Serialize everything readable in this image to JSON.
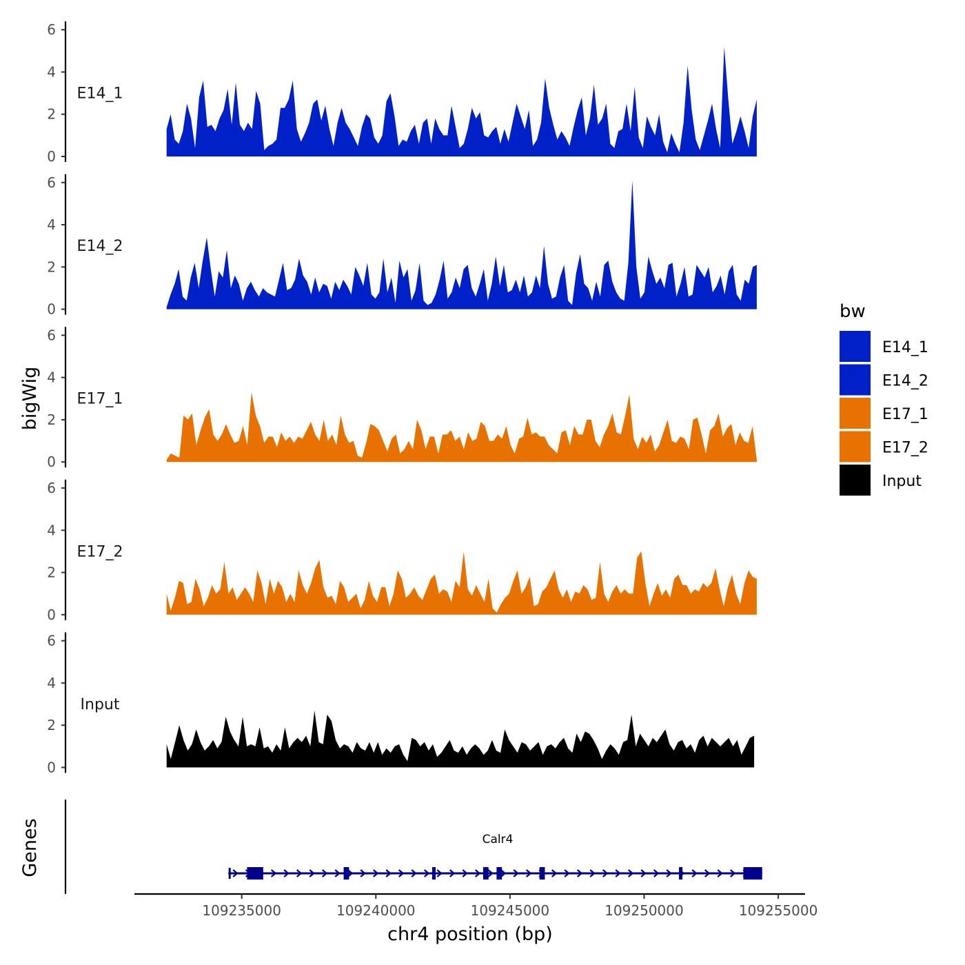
{
  "chart_data": {
    "type": "area",
    "title": "",
    "xlabel": "chr4 position (bp)",
    "ylabel": "bigWig",
    "genes_label": "Genes",
    "xlim": [
      109231000,
      109256000
    ],
    "ylim": [
      0,
      6.3
    ],
    "x_ticks": [
      109235000,
      109240000,
      109245000,
      109250000,
      109255000
    ],
    "x_tick_labels": [
      "109235000",
      "109240000",
      "109245000",
      "109250000",
      "109255000"
    ],
    "y_ticks": [
      0,
      2,
      4,
      6
    ],
    "y_tick_labels": [
      "0",
      "2",
      "4",
      "6"
    ],
    "legend": {
      "title": "bw",
      "position": "right",
      "entries": [
        {
          "label": "E14_1",
          "color": "#0020C8"
        },
        {
          "label": "E14_2",
          "color": "#0020C8"
        },
        {
          "label": "E17_1",
          "color": "#E87200"
        },
        {
          "label": "E17_2",
          "color": "#E87200"
        },
        {
          "label": "Input",
          "color": "#000000"
        }
      ]
    },
    "series": [
      {
        "name": "E14_1",
        "color": "#0020C8",
        "x_start": 109232200,
        "x_end": 109254200,
        "values": [
          1.3,
          2.0,
          0.8,
          0.6,
          1.2,
          2.5,
          1.8,
          0.4,
          2.8,
          3.6,
          1.4,
          1.5,
          1.2,
          1.8,
          2.2,
          3.2,
          1.5,
          3.5,
          1.5,
          1.2,
          1.6,
          1.3,
          3.1,
          2.5,
          0.3,
          0.5,
          0.6,
          0.8,
          2.3,
          2.3,
          2.7,
          3.6,
          1.3,
          0.7,
          1.1,
          1.6,
          2.5,
          2.7,
          1.7,
          2.4,
          1.3,
          0.5,
          1.6,
          2.3,
          1.6,
          1.3,
          0.9,
          0.5,
          1.4,
          2.0,
          1.8,
          0.9,
          0.6,
          1.0,
          2.6,
          3.0,
          1.9,
          0.5,
          0.8,
          0.7,
          1.2,
          1.5,
          0.6,
          1.6,
          1.8,
          0.6,
          1.8,
          1.3,
          1.0,
          1.0,
          2.4,
          1.4,
          0.4,
          0.6,
          1.3,
          2.3,
          1.8,
          2.1,
          1.0,
          0.9,
          1.2,
          1.4,
          0.6,
          1.3,
          0.7,
          1.6,
          2.5,
          1.9,
          1.3,
          2.2,
          0.5,
          0.8,
          1.6,
          3.7,
          2.3,
          1.5,
          0.8,
          1.2,
          0.9,
          0.5,
          1.4,
          2.2,
          2.8,
          1.0,
          1.8,
          3.4,
          1.5,
          1.8,
          2.5,
          0.6,
          0.4,
          1.2,
          1.3,
          2.5,
          1.2,
          3.3,
          0.9,
          0.4,
          1.9,
          1.4,
          1.0,
          2.0,
          0.7,
          0.2,
          1.1,
          0.6,
          0.2,
          1.6,
          4.3,
          2.2,
          0.8,
          0.3,
          1.0,
          1.7,
          2.5,
          1.3,
          0.4,
          5.2,
          2.7,
          0.6,
          1.2,
          1.9,
          1.2,
          0.4,
          1.9,
          2.7
        ]
      },
      {
        "name": "E14_2",
        "color": "#0020C8",
        "x_start": 109232200,
        "x_end": 109254200,
        "values": [
          0.1,
          0.7,
          1.2,
          1.9,
          0.6,
          0.4,
          1.5,
          2.2,
          1.0,
          2.3,
          3.4,
          1.9,
          0.6,
          1.8,
          1.5,
          2.8,
          1.0,
          1.6,
          1.2,
          0.4,
          1.0,
          1.3,
          0.9,
          0.6,
          1.0,
          0.8,
          0.7,
          0.6,
          1.4,
          2.2,
          0.9,
          1.0,
          1.4,
          2.4,
          1.6,
          1.3,
          0.7,
          1.5,
          0.8,
          1.2,
          1.1,
          0.5,
          1.3,
          0.9,
          1.4,
          1.1,
          0.7,
          2.0,
          1.6,
          1.1,
          2.2,
          0.7,
          0.5,
          0.8,
          2.4,
          0.8,
          1.5,
          0.3,
          2.3,
          1.5,
          1.9,
          0.4,
          0.9,
          2.2,
          0.4,
          0.2,
          0.3,
          0.7,
          1.4,
          2.3,
          0.5,
          0.8,
          1.5,
          1.0,
          1.9,
          2.1,
          1.0,
          0.6,
          1.2,
          1.9,
          0.4,
          1.2,
          2.5,
          1.1,
          2.1,
          0.8,
          0.9,
          1.4,
          0.8,
          1.6,
          0.6,
          0.8,
          1.6,
          1.0,
          3.0,
          1.2,
          0.5,
          0.6,
          1.5,
          2.1,
          0.4,
          0.2,
          1.7,
          2.6,
          1.2,
          1.0,
          0.4,
          1.3,
          0.6,
          2.1,
          2.3,
          1.3,
          0.8,
          0.5,
          0.4,
          2.2,
          6.1,
          2.0,
          0.5,
          0.8,
          2.5,
          1.8,
          1.2,
          1.5,
          1.0,
          2.1,
          2.2,
          0.6,
          1.2,
          2.0,
          0.6,
          0.7,
          2.1,
          1.8,
          1.5,
          2.0,
          0.8,
          1.1,
          1.6,
          0.7,
          1.8,
          2.1,
          0.7,
          0.4,
          1.4,
          1.2,
          2.0,
          2.1
        ]
      },
      {
        "name": "E17_1",
        "color": "#E87200",
        "x_start": 109232200,
        "x_end": 109254200,
        "values": [
          0.1,
          0.4,
          0.3,
          0.2,
          2.2,
          2.0,
          2.3,
          0.8,
          1.5,
          2.1,
          2.5,
          1.3,
          1.0,
          1.3,
          1.8,
          1.3,
          0.9,
          1.0,
          1.7,
          0.8,
          3.3,
          2.2,
          1.7,
          0.9,
          1.2,
          1.2,
          0.7,
          1.4,
          1.0,
          1.2,
          0.9,
          1.2,
          1.1,
          1.5,
          1.9,
          1.3,
          1.0,
          2.0,
          1.0,
          1.3,
          0.8,
          2.2,
          1.3,
          0.9,
          1.0,
          0.3,
          0.2,
          0.9,
          1.8,
          1.7,
          1.5,
          1.0,
          0.5,
          1.1,
          1.3,
          0.4,
          0.6,
          1.0,
          0.6,
          2.0,
          1.5,
          0.6,
          1.2,
          1.2,
          0.4,
          1.3,
          1.3,
          1.5,
          1.0,
          1.2,
          0.6,
          1.4,
          1.0,
          1.1,
          1.9,
          1.7,
          1.0,
          1.0,
          1.3,
          1.1,
          1.7,
          0.8,
          0.4,
          1.1,
          1.2,
          2.1,
          1.3,
          1.4,
          1.2,
          1.2,
          0.8,
          0.6,
          0.4,
          1.4,
          1.5,
          0.8,
          1.7,
          1.3,
          1.3,
          2.0,
          2.0,
          1.0,
          0.7,
          1.3,
          1.7,
          2.3,
          1.4,
          1.3,
          2.2,
          3.2,
          1.1,
          0.6,
          1.2,
          0.9,
          1.3,
          0.5,
          0.8,
          1.4,
          2.0,
          1.0,
          0.9,
          1.2,
          1.1,
          0.6,
          2.0,
          2.1,
          1.3,
          0.4,
          1.5,
          1.7,
          2.3,
          1.2,
          1.6,
          1.8,
          0.8,
          1.4,
          1.0,
          0.9,
          1.7,
          0.1
        ]
      },
      {
        "name": "E17_2",
        "color": "#E87200",
        "x_start": 109232200,
        "x_end": 109254200,
        "values": [
          1.0,
          0.2,
          0.8,
          1.6,
          1.5,
          0.5,
          0.6,
          1.7,
          1.2,
          0.4,
          0.8,
          1.4,
          1.0,
          1.2,
          2.5,
          1.0,
          1.3,
          0.7,
          1.0,
          1.3,
          1.0,
          0.6,
          2.1,
          1.5,
          0.5,
          1.7,
          1.0,
          1.6,
          1.3,
          0.6,
          1.0,
          0.6,
          2.1,
          1.4,
          1.0,
          1.5,
          2.2,
          2.6,
          1.3,
          0.8,
          0.9,
          0.5,
          1.6,
          1.3,
          0.6,
          0.8,
          1.0,
          0.3,
          0.7,
          1.6,
          0.9,
          0.6,
          1.3,
          1.3,
          0.4,
          1.0,
          2.1,
          1.7,
          0.8,
          1.0,
          1.3,
          0.9,
          0.7,
          1.2,
          1.7,
          1.9,
          1.0,
          1.2,
          1.1,
          0.6,
          1.6,
          1.3,
          3.0,
          1.2,
          0.9,
          1.4,
          1.0,
          0.6,
          1.7,
          0.3,
          0.1,
          0.5,
          0.8,
          1.0,
          1.6,
          2.1,
          1.0,
          1.3,
          1.8,
          0.4,
          0.5,
          1.1,
          1.3,
          1.7,
          2.1,
          1.2,
          0.8,
          1.2,
          0.6,
          1.1,
          1.0,
          1.4,
          1.2,
          0.7,
          0.8,
          2.5,
          1.0,
          0.6,
          1.1,
          1.4,
          1.0,
          1.2,
          1.0,
          1.0,
          2.7,
          3.0,
          1.5,
          0.4,
          1.0,
          1.5,
          0.9,
          1.2,
          0.8,
          1.7,
          1.9,
          1.4,
          1.4,
          1.0,
          1.2,
          1.1,
          1.5,
          1.3,
          1.5,
          2.2,
          1.2,
          0.4,
          1.3,
          1.9,
          1.0,
          0.5,
          1.5,
          2.1,
          1.8,
          1.7
        ]
      },
      {
        "name": "Input",
        "color": "#000000",
        "x_start": 109232200,
        "x_end": 109254100,
        "values": [
          1.1,
          0.4,
          1.2,
          2.0,
          1.3,
          0.8,
          1.1,
          1.8,
          1.2,
          0.8,
          1.0,
          1.3,
          0.9,
          1.2,
          2.4,
          1.7,
          1.3,
          1.0,
          2.4,
          1.0,
          1.1,
          1.0,
          1.9,
          0.9,
          1.0,
          0.7,
          1.1,
          0.8,
          1.9,
          0.9,
          1.2,
          1.4,
          1.2,
          1.5,
          1.0,
          2.7,
          1.2,
          1.1,
          2.5,
          2.2,
          1.3,
          0.9,
          1.1,
          1.0,
          0.7,
          1.2,
          0.9,
          0.8,
          1.2,
          0.7,
          1.2,
          0.6,
          0.9,
          0.7,
          1.0,
          1.1,
          0.6,
          0.3,
          1.4,
          1.3,
          1.0,
          1.2,
          0.8,
          1.1,
          0.5,
          0.7,
          1.0,
          1.3,
          0.8,
          0.7,
          1.0,
          0.6,
          0.9,
          1.1,
          0.9,
          0.6,
          0.8,
          1.3,
          0.8,
          0.7,
          1.8,
          1.3,
          1.0,
          0.7,
          1.2,
          1.1,
          0.8,
          1.0,
          1.2,
          0.6,
          1.0,
          1.1,
          0.9,
          1.2,
          1.4,
          0.9,
          0.7,
          1.6,
          1.2,
          1.7,
          1.6,
          1.3,
          0.9,
          0.4,
          0.8,
          1.1,
          0.9,
          0.6,
          1.2,
          1.3,
          2.5,
          1.0,
          1.6,
          1.3,
          1.0,
          1.4,
          1.2,
          1.5,
          1.8,
          1.1,
          0.8,
          1.2,
          1.3,
          0.9,
          1.1,
          0.7,
          1.3,
          1.5,
          1.0,
          1.4,
          1.2,
          1.0,
          1.2,
          1.4,
          1.0,
          1.3,
          0.6,
          1.0,
          1.4,
          1.5
        ]
      }
    ],
    "gene": {
      "name": "Calr4",
      "color": "#00008B",
      "strand": "+",
      "start": 109234500,
      "end": 109254400,
      "exons": [
        {
          "start": 109235200,
          "end": 109235800
        },
        {
          "start": 109238800,
          "end": 109239000
        },
        {
          "start": 109242100,
          "end": 109242200
        },
        {
          "start": 109244000,
          "end": 109244200
        },
        {
          "start": 109244500,
          "end": 109244700
        },
        {
          "start": 109246100,
          "end": 109246300
        },
        {
          "start": 109251300,
          "end": 109251400
        },
        {
          "start": 109253700,
          "end": 109254400
        }
      ]
    }
  }
}
